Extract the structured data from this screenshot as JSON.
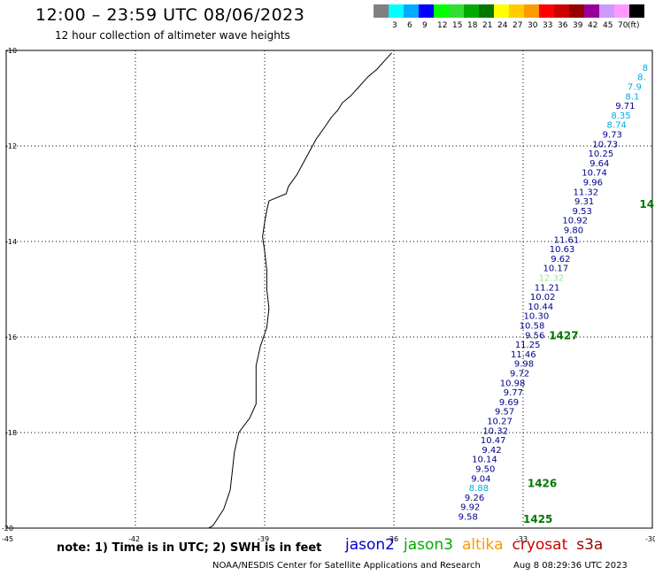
{
  "header": {
    "title": "12:00 – 23:59 UTC 08/06/2023",
    "subtitle": "12 hour collection of altimeter wave heights"
  },
  "colorbar": {
    "unit": "(ft)",
    "bins": [
      {
        "label": "",
        "color": "#808080"
      },
      {
        "label": "3",
        "color": "#00ffff"
      },
      {
        "label": "6",
        "color": "#00aaff"
      },
      {
        "label": "9",
        "color": "#0000ff"
      },
      {
        "label": "12",
        "color": "#00ff00"
      },
      {
        "label": "15",
        "color": "#33dd33"
      },
      {
        "label": "18",
        "color": "#00aa00"
      },
      {
        "label": "21",
        "color": "#007700"
      },
      {
        "label": "24",
        "color": "#ffff00"
      },
      {
        "label": "27",
        "color": "#ffcc00"
      },
      {
        "label": "30",
        "color": "#ff9900"
      },
      {
        "label": "33",
        "color": "#ff0000"
      },
      {
        "label": "36",
        "color": "#cc0000"
      },
      {
        "label": "39",
        "color": "#990000"
      },
      {
        "label": "42",
        "color": "#990099"
      },
      {
        "label": "45",
        "color": "#cc99ff"
      },
      {
        "label": "70",
        "color": "#ff99ff"
      },
      {
        "label": "",
        "color": "#000000"
      }
    ]
  },
  "map": {
    "lon_range": [
      -45,
      -30
    ],
    "lat_range": [
      -20,
      -10
    ],
    "lon_labels": [
      "-45",
      "-42",
      "-39",
      "-36",
      "-33",
      "-30"
    ],
    "lat_labels": [
      "-10",
      "-12",
      "-14",
      "-16",
      "-18",
      "-20"
    ],
    "colors": {
      "navy": "#00008b",
      "cyan": "#00aadd",
      "lightgreen": "#90ee90",
      "green": "#007700"
    },
    "readings": [
      {
        "lon": -30.1,
        "lat": -10.35,
        "value": "8",
        "color": "cyan"
      },
      {
        "lon": -30.15,
        "lat": -10.55,
        "value": "8.",
        "color": "cyan"
      },
      {
        "lon": -30.25,
        "lat": -10.75,
        "value": "7.9",
        "color": "cyan"
      },
      {
        "lon": -30.3,
        "lat": -10.95,
        "value": "8.1",
        "color": "cyan"
      },
      {
        "lon": -30.4,
        "lat": -11.15,
        "value": "9.71",
        "color": "navy"
      },
      {
        "lon": -30.5,
        "lat": -11.35,
        "value": "8.35",
        "color": "cyan"
      },
      {
        "lon": -30.6,
        "lat": -11.55,
        "value": "8.74",
        "color": "cyan"
      },
      {
        "lon": -30.7,
        "lat": -11.75,
        "value": "9.73",
        "color": "navy"
      },
      {
        "lon": -30.8,
        "lat": -11.95,
        "value": "10.73",
        "color": "navy"
      },
      {
        "lon": -30.9,
        "lat": -12.15,
        "value": "10.25",
        "color": "navy"
      },
      {
        "lon": -31.0,
        "lat": -12.35,
        "value": "9.64",
        "color": "navy"
      },
      {
        "lon": -31.05,
        "lat": -12.55,
        "value": "10.74",
        "color": "navy"
      },
      {
        "lon": -31.15,
        "lat": -12.75,
        "value": "9.96",
        "color": "navy"
      },
      {
        "lon": -31.25,
        "lat": -12.95,
        "value": "11.32",
        "color": "navy"
      },
      {
        "lon": -31.35,
        "lat": -13.15,
        "value": "9.31",
        "color": "navy"
      },
      {
        "lon": -31.4,
        "lat": -13.35,
        "value": "9.53",
        "color": "navy"
      },
      {
        "lon": -31.5,
        "lat": -13.55,
        "value": "10.92",
        "color": "navy"
      },
      {
        "lon": -31.6,
        "lat": -13.75,
        "value": "9.80",
        "color": "navy"
      },
      {
        "lon": -31.7,
        "lat": -13.95,
        "value": "11.61",
        "color": "navy"
      },
      {
        "lon": -31.8,
        "lat": -14.15,
        "value": "10.63",
        "color": "navy"
      },
      {
        "lon": -31.9,
        "lat": -14.35,
        "value": "9.62",
        "color": "navy"
      },
      {
        "lon": -31.95,
        "lat": -14.55,
        "value": "10.17",
        "color": "navy"
      },
      {
        "lon": -32.05,
        "lat": -14.75,
        "value": "12.32",
        "color": "lightgreen"
      },
      {
        "lon": -32.15,
        "lat": -14.95,
        "value": "11.21",
        "color": "navy"
      },
      {
        "lon": -32.25,
        "lat": -15.15,
        "value": "10.02",
        "color": "navy"
      },
      {
        "lon": -32.3,
        "lat": -15.35,
        "value": "10.44",
        "color": "navy"
      },
      {
        "lon": -32.4,
        "lat": -15.55,
        "value": "10.30",
        "color": "navy"
      },
      {
        "lon": -32.5,
        "lat": -15.75,
        "value": "10.58",
        "color": "navy"
      },
      {
        "lon": -32.5,
        "lat": -15.95,
        "value": "9.56",
        "color": "navy"
      },
      {
        "lon": -32.6,
        "lat": -16.15,
        "value": "11.25",
        "color": "navy"
      },
      {
        "lon": -32.7,
        "lat": -16.35,
        "value": "11.46",
        "color": "navy"
      },
      {
        "lon": -32.75,
        "lat": -16.55,
        "value": "9.98",
        "color": "navy"
      },
      {
        "lon": -32.85,
        "lat": -16.75,
        "value": "9.72",
        "color": "navy"
      },
      {
        "lon": -32.95,
        "lat": -16.95,
        "value": "10.98",
        "color": "navy"
      },
      {
        "lon": -33.0,
        "lat": -17.15,
        "value": "9.77",
        "color": "navy"
      },
      {
        "lon": -33.1,
        "lat": -17.35,
        "value": "9.69",
        "color": "navy"
      },
      {
        "lon": -33.2,
        "lat": -17.55,
        "value": "9.57",
        "color": "navy"
      },
      {
        "lon": -33.25,
        "lat": -17.75,
        "value": "10.27",
        "color": "navy"
      },
      {
        "lon": -33.35,
        "lat": -17.95,
        "value": "10.32",
        "color": "navy"
      },
      {
        "lon": -33.4,
        "lat": -18.15,
        "value": "10.47",
        "color": "navy"
      },
      {
        "lon": -33.5,
        "lat": -18.35,
        "value": "9.42",
        "color": "navy"
      },
      {
        "lon": -33.6,
        "lat": -18.55,
        "value": "10.14",
        "color": "navy"
      },
      {
        "lon": -33.65,
        "lat": -18.75,
        "value": "9.50",
        "color": "navy"
      },
      {
        "lon": -33.75,
        "lat": -18.95,
        "value": "9.04",
        "color": "navy"
      },
      {
        "lon": -33.8,
        "lat": -19.15,
        "value": "8.88",
        "color": "cyan"
      },
      {
        "lon": -33.9,
        "lat": -19.35,
        "value": "9.26",
        "color": "navy"
      },
      {
        "lon": -34.0,
        "lat": -19.55,
        "value": "9.92",
        "color": "navy"
      },
      {
        "lon": -34.05,
        "lat": -19.75,
        "value": "9.58",
        "color": "navy"
      }
    ],
    "time_labels": [
      {
        "lon": -30.3,
        "lat": -13.2,
        "value": "14"
      },
      {
        "lon": -32.4,
        "lat": -15.95,
        "value": "1427"
      },
      {
        "lon": -32.9,
        "lat": -19.05,
        "value": "1426"
      },
      {
        "lon": -33.0,
        "lat": -19.8,
        "value": "1425"
      }
    ],
    "coastline": [
      [
        -36.05,
        -10.05
      ],
      [
        -36.2,
        -10.2
      ],
      [
        -36.4,
        -10.4
      ],
      [
        -36.6,
        -10.55
      ],
      [
        -36.8,
        -10.75
      ],
      [
        -37.0,
        -10.95
      ],
      [
        -37.2,
        -11.1
      ],
      [
        -37.3,
        -11.25
      ],
      [
        -37.45,
        -11.4
      ],
      [
        -37.6,
        -11.6
      ],
      [
        -37.8,
        -11.85
      ],
      [
        -37.95,
        -12.1
      ],
      [
        -38.1,
        -12.35
      ],
      [
        -38.25,
        -12.6
      ],
      [
        -38.45,
        -12.85
      ],
      [
        -38.5,
        -13.0
      ],
      [
        -38.9,
        -13.15
      ],
      [
        -38.95,
        -13.35
      ],
      [
        -39.0,
        -13.6
      ],
      [
        -39.05,
        -13.9
      ],
      [
        -39.0,
        -14.2
      ],
      [
        -38.95,
        -14.6
      ],
      [
        -38.95,
        -15.0
      ],
      [
        -38.9,
        -15.4
      ],
      [
        -38.95,
        -15.8
      ],
      [
        -39.1,
        -16.2
      ],
      [
        -39.2,
        -16.6
      ],
      [
        -39.2,
        -17.0
      ],
      [
        -39.2,
        -17.4
      ],
      [
        -39.35,
        -17.7
      ],
      [
        -39.6,
        -18.0
      ],
      [
        -39.7,
        -18.4
      ],
      [
        -39.75,
        -18.8
      ],
      [
        -39.8,
        -19.2
      ],
      [
        -39.95,
        -19.6
      ],
      [
        -40.2,
        -19.95
      ],
      [
        -40.3,
        -20.0
      ]
    ]
  },
  "footer": {
    "note": "note:  1) Time is in UTC;  2) SWH is in feet",
    "satellites": [
      {
        "name": "jason2",
        "color": "#0000cc"
      },
      {
        "name": "jason3",
        "color": "#00aa00"
      },
      {
        "name": "altika",
        "color": "#ff9900"
      },
      {
        "name": "cryosat",
        "color": "#cc0000"
      },
      {
        "name": "s3a",
        "color": "#990000"
      }
    ],
    "credit": "NOAA/NESDIS Center for Satellite Applications and Research",
    "timestamp": "Aug  8 08:29:36 UTC 2023"
  }
}
